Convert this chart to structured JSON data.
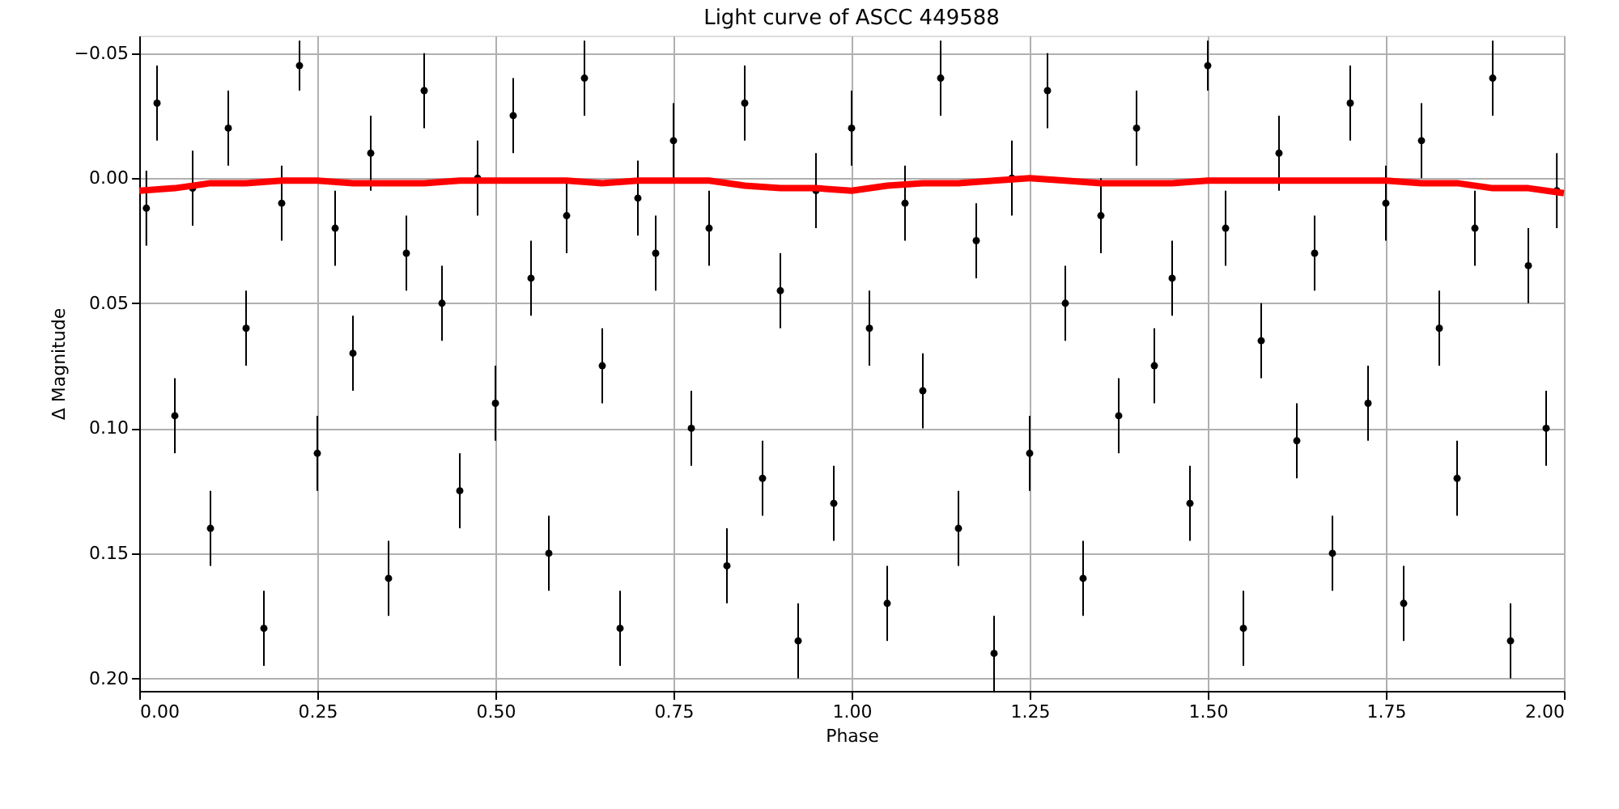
{
  "chart_data": {
    "type": "scatter",
    "title": "Light curve of ASCC 449588",
    "xlabel": "Phase",
    "ylabel": "Δ Magnitude",
    "xlim": [
      0,
      2
    ],
    "xticks": [
      {
        "value": 0,
        "label": "0.00"
      },
      0.25,
      {
        "value": 0.5,
        "label": "0.50"
      },
      0.75,
      {
        "value": 1,
        "label": "1.00"
      },
      1.25,
      {
        "value": 1.5,
        "label": "1.50"
      },
      1.75,
      {
        "value": 2,
        "label": "2.00"
      }
    ],
    "ylim": [
      0.205,
      -0.057
    ],
    "yticks": [
      {
        "value": -0.05,
        "label": "−0.05"
      },
      {
        "value": 0,
        "label": "0.00"
      },
      0.05,
      {
        "value": 0.1,
        "label": "0.10"
      },
      0.15,
      {
        "value": 0.2,
        "label": "0.20"
      }
    ],
    "grid": true,
    "legend": false,
    "marker": "circle",
    "series": [
      {
        "color": "#000000",
        "x": [
          0.01,
          0.025,
          0.05,
          0.075,
          0.1,
          0.125,
          0.15,
          0.175,
          0.2,
          0.225,
          0.25,
          0.275,
          0.3,
          0.325,
          0.35,
          0.375,
          0.4,
          0.425,
          0.45,
          0.475,
          0.5,
          0.525,
          0.55,
          0.575,
          0.6,
          0.625,
          0.65,
          0.675,
          0.7,
          0.725,
          0.75,
          0.775,
          0.8,
          0.825,
          0.85,
          0.875,
          0.9,
          0.925,
          0.95,
          0.975,
          1,
          1.025,
          1.05,
          1.075,
          1.1,
          1.125,
          1.15,
          1.175,
          1.2,
          1.225,
          1.25,
          1.275,
          1.3,
          1.325,
          1.35,
          1.375,
          1.4,
          1.425,
          1.45,
          1.475,
          1.5,
          1.525,
          1.55,
          1.575,
          1.6,
          1.625,
          1.65,
          1.675,
          1.7,
          1.725,
          1.75,
          1.775,
          1.8,
          1.825,
          1.85,
          1.875,
          1.9,
          1.925,
          1.95,
          1.975,
          1.99
        ],
        "values": [
          0.012,
          -0.03,
          0.095,
          0.004,
          0.14,
          -0.02,
          0.06,
          0.18,
          0.01,
          -0.045,
          0.11,
          0.02,
          0.07,
          -0.01,
          0.16,
          0.03,
          -0.035,
          0.05,
          0.125,
          0.0,
          0.09,
          -0.025,
          0.04,
          0.15,
          0.015,
          -0.04,
          0.075,
          0.18,
          0.008,
          0.03,
          -0.015,
          0.1,
          0.02,
          0.155,
          -0.03,
          0.12,
          0.045,
          0.185,
          0.005,
          0.13,
          -0.02,
          0.06,
          0.17,
          0.01,
          0.085,
          -0.04,
          0.14,
          0.025,
          0.19,
          0.0,
          0.11,
          -0.035,
          0.05,
          0.16,
          0.015,
          0.095,
          -0.02,
          0.075,
          0.04,
          0.13,
          -0.045,
          0.02,
          0.18,
          0.065,
          -0.01,
          0.105,
          0.03,
          0.15,
          -0.03,
          0.09,
          0.01,
          0.17,
          -0.015,
          0.06,
          0.12,
          0.02,
          -0.04,
          0.185,
          0.035,
          0.1,
          0.005
        ],
        "errors": [
          0.015,
          0.015,
          0.015,
          0.015,
          0.015,
          0.015,
          0.015,
          0.015,
          0.015,
          0.01,
          0.015,
          0.015,
          0.015,
          0.015,
          0.015,
          0.015,
          0.015,
          0.015,
          0.015,
          0.015,
          0.015,
          0.015,
          0.015,
          0.015,
          0.015,
          0.015,
          0.015,
          0.015,
          0.015,
          0.015,
          0.015,
          0.015,
          0.015,
          0.015,
          0.015,
          0.015,
          0.015,
          0.015,
          0.015,
          0.015,
          0.015,
          0.015,
          0.015,
          0.015,
          0.015,
          0.015,
          0.015,
          0.015,
          0.015,
          0.015,
          0.015,
          0.015,
          0.015,
          0.015,
          0.015,
          0.015,
          0.015,
          0.015,
          0.015,
          0.015,
          0.01,
          0.015,
          0.015,
          0.015,
          0.015,
          0.015,
          0.015,
          0.015,
          0.015,
          0.015,
          0.015,
          0.015,
          0.015,
          0.015,
          0.015,
          0.015,
          0.015,
          0.015,
          0.015,
          0.015,
          0.015
        ]
      },
      {
        "type": "line",
        "color": "#ff0000",
        "marker": "none",
        "x": [
          0,
          0.05,
          0.1,
          0.15,
          0.2,
          0.25,
          0.3,
          0.35,
          0.4,
          0.45,
          0.5,
          0.55,
          0.6,
          0.65,
          0.7,
          0.75,
          0.8,
          0.85,
          0.9,
          0.95,
          1,
          1.05,
          1.1,
          1.15,
          1.2,
          1.25,
          1.3,
          1.35,
          1.4,
          1.45,
          1.5,
          1.55,
          1.6,
          1.65,
          1.7,
          1.75,
          1.8,
          1.85,
          1.9,
          1.95,
          2
        ],
        "values": [
          0.005,
          0.004,
          0.002,
          0.002,
          0.001,
          0.001,
          0.002,
          0.002,
          0.002,
          0.001,
          0.001,
          0.001,
          0.001,
          0.002,
          0.001,
          0.001,
          0.001,
          0.003,
          0.004,
          0.004,
          0.005,
          0.003,
          0.002,
          0.002,
          0.001,
          0.0,
          0.001,
          0.002,
          0.002,
          0.002,
          0.001,
          0.001,
          0.001,
          0.001,
          0.001,
          0.001,
          0.002,
          0.002,
          0.004,
          0.004,
          0.006
        ]
      }
    ]
  }
}
